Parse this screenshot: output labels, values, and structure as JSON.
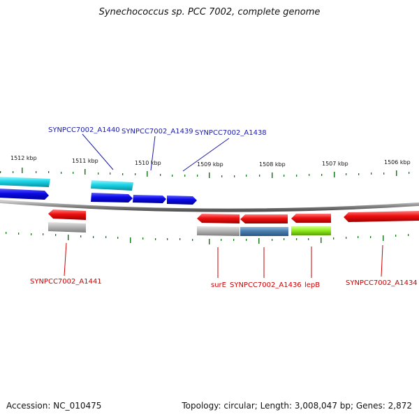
{
  "title": "Synechococcus sp. PCC 7002, complete genome",
  "footer": {
    "accession": "Accession: NC_010475",
    "stats": "Topology: circular; Length: 3,008,047 bp; Genes: 2,872"
  },
  "colors": {
    "backbone": "#8c8c8c",
    "tick": "#1e7a1e",
    "label_forward": "#1a1aa6",
    "label_reverse": "#cc0000",
    "cds_forward": "#1010ee",
    "rna_forward": "#1ad6e6",
    "cds_reverse": "#ee1111",
    "pseudo_gray": "#b4b4b4",
    "steel_blue": "#4a7fb0",
    "lime": "#8fee1a"
  },
  "axis": {
    "kbp_labels": [
      {
        "text": "1512 kbp",
        "value": 1512
      },
      {
        "text": "1511 kbp",
        "value": 1511
      },
      {
        "text": "1510 kbp",
        "value": 1510
      },
      {
        "text": "1509 kbp",
        "value": 1509
      },
      {
        "text": "1508 kbp",
        "value": 1508
      },
      {
        "text": "1507 kbp",
        "value": 1507
      },
      {
        "text": "1506 kbp",
        "value": 1506
      }
    ]
  },
  "forward_labels": [
    {
      "text": "SYNPCC7002_A1440",
      "gene": "A1440"
    },
    {
      "text": "SYNPCC7002_A1439",
      "gene": "A1439"
    },
    {
      "text": "SYNPCC7002_A1438",
      "gene": "A1438"
    }
  ],
  "reverse_labels": [
    {
      "text": "SYNPCC7002_A1441",
      "gene": "A1441"
    },
    {
      "text": "surE",
      "gene": "surE"
    },
    {
      "text": "SYNPCC7002_A1436",
      "gene": "A1436"
    },
    {
      "text": "lepB",
      "gene": "lepB"
    },
    {
      "text": "SYNPCC7002_A1434",
      "gene": "A1434"
    }
  ]
}
